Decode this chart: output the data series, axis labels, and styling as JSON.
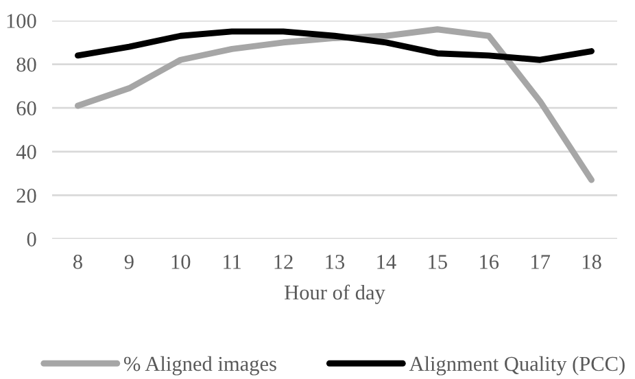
{
  "chart_data": {
    "type": "line",
    "xlabel": "Hour of day",
    "categories": [
      "8",
      "9",
      "10",
      "11",
      "12",
      "13",
      "14",
      "15",
      "16",
      "17",
      "18"
    ],
    "series": [
      {
        "name": "% Aligned images",
        "color": "#a6a6a6",
        "values": [
          61,
          69,
          82,
          87,
          90,
          92,
          93,
          96,
          93,
          63,
          27
        ]
      },
      {
        "name": "Alignment Quality (PCC)",
        "color": "#000000",
        "values": [
          84,
          88,
          93,
          95,
          95,
          93,
          90,
          85,
          84,
          82,
          86
        ]
      }
    ],
    "ylim": [
      0,
      100
    ],
    "yticks": [
      0,
      20,
      40,
      60,
      80,
      100
    ],
    "grid": "y",
    "legend": "bottom",
    "marker": "none",
    "line_style": "solid"
  }
}
